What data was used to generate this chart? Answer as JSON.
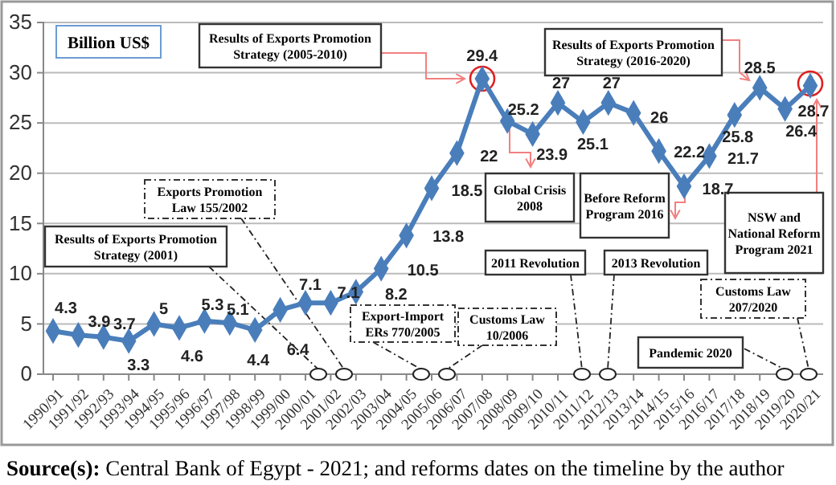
{
  "chart_data": {
    "type": "line",
    "ylabel": "Billion US$",
    "categories": [
      "1990/91",
      "1991/92",
      "1992/93",
      "1993/94",
      "1994/95",
      "1995/96",
      "1996/97",
      "1997/98",
      "1998/99",
      "1999/00",
      "2000/01",
      "2001/02",
      "2002/03",
      "2003/04",
      "2004/05",
      "2005/06",
      "2006/07",
      "2007/08",
      "2008/09",
      "2009/10",
      "2010/11",
      "2011/12",
      "2012/13",
      "2013/14",
      "2014/15",
      "2015/16",
      "2016/17",
      "2017/18",
      "2018/19",
      "2019/20",
      "2020/21"
    ],
    "series": [
      {
        "color": "#4a7ebb",
        "values": [
          4.3,
          3.9,
          3.7,
          3.3,
          5,
          4.6,
          5.3,
          5.1,
          4.4,
          6.4,
          7.1,
          7.1,
          8.2,
          10.5,
          13.8,
          18.5,
          22,
          29.4,
          25.2,
          23.9,
          27,
          25.1,
          27,
          26,
          22.2,
          18.7,
          21.7,
          25.8,
          28.5,
          26.4,
          28.7
        ]
      }
    ],
    "ylim": [
      0,
      35
    ],
    "yticks": [
      0,
      5,
      10,
      15,
      20,
      25,
      30,
      35
    ],
    "grid": "y",
    "marker": "diamond",
    "line_style": "solid",
    "data_labels": true,
    "annotations": [
      "Results of Exports Promotion Strategy (2001)",
      "Exports Promotion Law 155/2002",
      "Export-Import ERs 770/2005",
      "Customs Law 10/2006",
      "2011 Revolution",
      "2013 Revolution",
      "Pandemic 2020",
      "Customs Law 207/2020",
      "Global Crisis 2008",
      "Before Reform Program 2016",
      "Results of Exports Promotion Strategy (2005-2010)",
      "Results of Exports Promotion Strategy (2016-2020)",
      "NSW and National Reform Program 2021",
      "Source(s): Central Bank of Egypt - 2021; and reforms dates on the timeline by the author"
    ]
  }
}
